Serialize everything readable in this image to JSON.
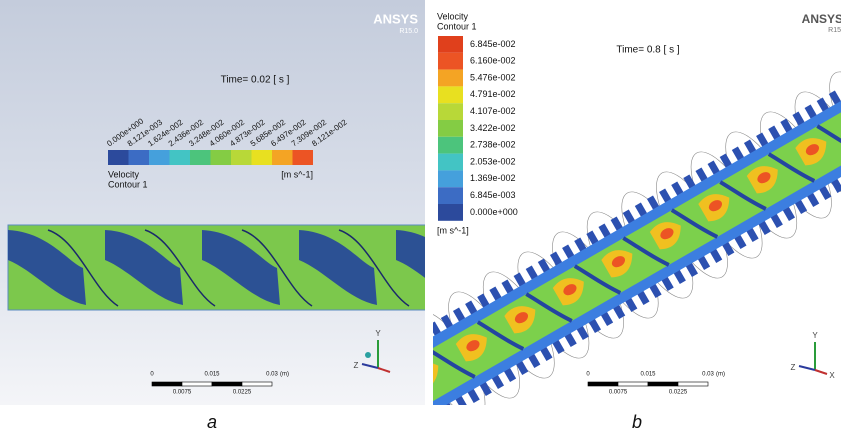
{
  "panels": [
    {
      "caption": "a",
      "logo": "ANSYS",
      "version": "R15.0",
      "time": "Time= 0.02 [ s ]",
      "legend": {
        "title": "Velocity",
        "subtitle": "Contour 1",
        "unit": "[m s^-1]",
        "labels": [
          "0.000e+000",
          "8.121e-003",
          "1.624e-002",
          "2.436e-002",
          "3.248e-002",
          "4.060e-002",
          "4.873e-002",
          "5.685e-002",
          "6.497e-002",
          "7.309e-002",
          "8.121e-002"
        ]
      },
      "scale": {
        "labels": [
          "0",
          "0.015",
          "0.03"
        ],
        "unit": "(m)",
        "sublabels": [
          "0.0075",
          "0.0225"
        ]
      },
      "axes": [
        "Y",
        "Z"
      ]
    },
    {
      "caption": "b",
      "logo": "ANSYS",
      "version": "R15",
      "time": "Time= 0.8 [ s ]",
      "legend": {
        "title": "Velocity",
        "subtitle": "Contour 1",
        "unit": "[m s^-1]",
        "labels": [
          "6.845e-002",
          "6.160e-002",
          "5.476e-002",
          "4.791e-002",
          "4.107e-002",
          "3.422e-002",
          "2.738e-002",
          "2.053e-002",
          "1.369e-002",
          "6.845e-003",
          "0.000e+000"
        ]
      },
      "scale": {
        "labels": [
          "0",
          "0.015",
          "0.03"
        ],
        "unit": "(m)",
        "sublabels": [
          "0.0075",
          "0.0225"
        ]
      },
      "axes": [
        "Y",
        "Z",
        "X"
      ]
    }
  ]
}
